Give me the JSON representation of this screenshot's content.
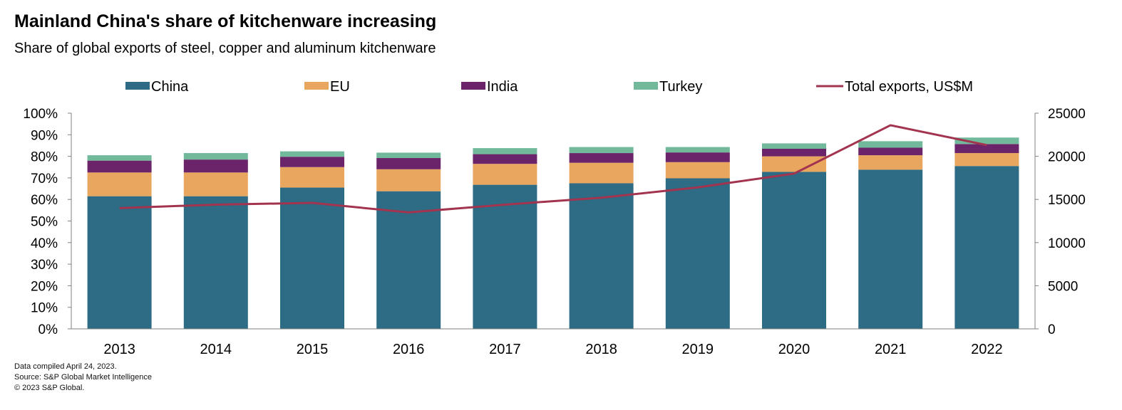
{
  "title": "Mainland China's share of kitchenware increasing",
  "subtitle": "Share of global exports of steel, copper and aluminum kitchenware",
  "footer": {
    "line1": "Data compiled April 24, 2023.",
    "line2": "Source: S&P Global Market Intelligence",
    "line3": "© 2023 S&P Global."
  },
  "chart_data": {
    "type": "bar",
    "stacked": true,
    "categories": [
      "2013",
      "2014",
      "2015",
      "2016",
      "2017",
      "2018",
      "2019",
      "2020",
      "2021",
      "2022"
    ],
    "series": [
      {
        "name": "China",
        "type": "bar",
        "axis": "left",
        "color": "#2e6b84",
        "values": [
          61.5,
          61.5,
          65.5,
          63.8,
          66.8,
          67.5,
          69.8,
          72.8,
          73.8,
          75.5
        ]
      },
      {
        "name": "EU",
        "type": "bar",
        "axis": "left",
        "color": "#e9a65f",
        "values": [
          11.0,
          11.0,
          9.5,
          10.2,
          9.7,
          9.5,
          7.5,
          7.2,
          6.7,
          6.0
        ]
      },
      {
        "name": "India",
        "type": "bar",
        "axis": "left",
        "color": "#6b2469",
        "values": [
          5.5,
          6.0,
          4.8,
          5.2,
          4.5,
          4.5,
          4.5,
          3.5,
          3.5,
          4.2
        ]
      },
      {
        "name": "Turkey",
        "type": "bar",
        "axis": "left",
        "color": "#72b99c",
        "values": [
          2.5,
          3.0,
          2.5,
          2.5,
          2.8,
          2.8,
          2.5,
          2.5,
          3.0,
          3.0
        ]
      },
      {
        "name": "Total exports, US$M",
        "type": "line",
        "axis": "right",
        "color": "#a3344f",
        "values": [
          14000,
          14400,
          14600,
          13500,
          14400,
          15200,
          16400,
          18000,
          23600,
          21300
        ]
      }
    ],
    "y_left": {
      "ticks": [
        "0%",
        "10%",
        "20%",
        "30%",
        "40%",
        "50%",
        "60%",
        "70%",
        "80%",
        "90%",
        "100%"
      ],
      "ylim": [
        0,
        100
      ]
    },
    "y_right": {
      "ticks": [
        "0",
        "5000",
        "10000",
        "15000",
        "20000",
        "25000"
      ],
      "ylim": [
        0,
        25000
      ]
    },
    "legend_position": "top",
    "grid": false
  }
}
